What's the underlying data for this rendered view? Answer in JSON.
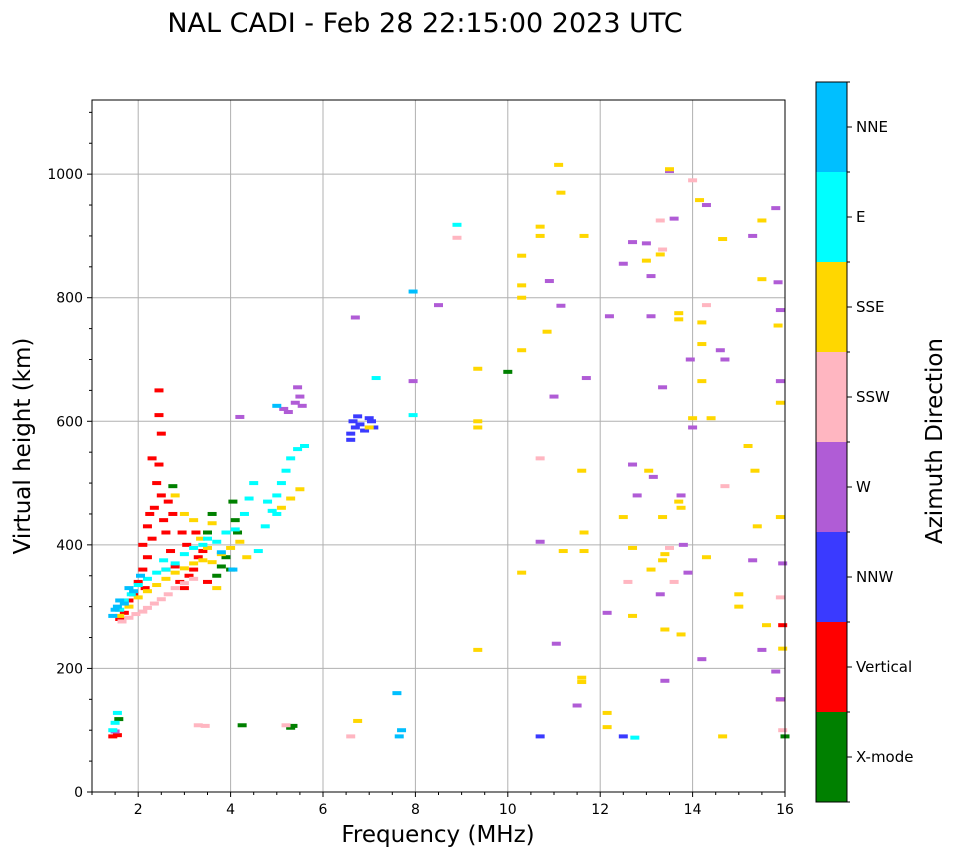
{
  "chart_data": {
    "type": "scatter",
    "title": "NAL CADI - Feb 28 22:15:00 2023 UTC",
    "xlabel": "Frequency (MHz)",
    "ylabel": "Virtual height (km)",
    "xlim": [
      1.0,
      16.0
    ],
    "ylim": [
      0,
      1120
    ],
    "xticks": [
      2,
      4,
      6,
      8,
      10,
      12,
      14,
      16
    ],
    "yticks": [
      0,
      200,
      400,
      600,
      800,
      1000
    ],
    "grid": true,
    "colorbar": {
      "label": "Azimuth Direction",
      "categories": [
        "X-mode",
        "Vertical",
        "NNW",
        "W",
        "SSW",
        "SSE",
        "E",
        "NNE"
      ],
      "colors": [
        "#008000",
        "#ff0000",
        "#3a3aff",
        "#b05cd6",
        "#ffb6c1",
        "#ffd700",
        "#00ffff",
        "#00bfff"
      ]
    },
    "series": [
      {
        "name": "X-mode",
        "points": [
          [
            3.7,
            350
          ],
          [
            3.8,
            365
          ],
          [
            3.9,
            380
          ],
          [
            4.0,
            360
          ],
          [
            4.05,
            470
          ],
          [
            4.1,
            440
          ],
          [
            4.15,
            420
          ],
          [
            3.6,
            450
          ],
          [
            3.5,
            420
          ],
          [
            2.75,
            495
          ],
          [
            1.58,
            118
          ],
          [
            4.25,
            108
          ],
          [
            5.3,
            104
          ],
          [
            5.35,
            107
          ],
          [
            10.0,
            680
          ],
          [
            16.0,
            90
          ]
        ]
      },
      {
        "name": "Vertical",
        "points": [
          [
            1.45,
            90
          ],
          [
            1.55,
            92
          ],
          [
            1.6,
            280
          ],
          [
            1.7,
            290
          ],
          [
            1.8,
            310
          ],
          [
            1.9,
            320
          ],
          [
            2.0,
            340
          ],
          [
            2.1,
            360
          ],
          [
            2.2,
            380
          ],
          [
            2.3,
            410
          ],
          [
            2.35,
            460
          ],
          [
            2.4,
            500
          ],
          [
            2.45,
            530
          ],
          [
            2.3,
            540
          ],
          [
            2.5,
            580
          ],
          [
            2.45,
            610
          ],
          [
            2.45,
            650
          ],
          [
            2.5,
            480
          ],
          [
            2.6,
            420
          ],
          [
            2.7,
            390
          ],
          [
            2.8,
            365
          ],
          [
            2.9,
            340
          ],
          [
            3.0,
            330
          ],
          [
            3.1,
            350
          ],
          [
            3.2,
            360
          ],
          [
            3.3,
            380
          ],
          [
            3.4,
            390
          ],
          [
            2.2,
            430
          ],
          [
            2.25,
            450
          ],
          [
            2.55,
            440
          ],
          [
            2.65,
            470
          ],
          [
            2.75,
            450
          ],
          [
            2.95,
            420
          ],
          [
            3.05,
            400
          ],
          [
            3.25,
            420
          ],
          [
            2.1,
            400
          ],
          [
            2.15,
            330
          ],
          [
            2.6,
            360
          ],
          [
            3.5,
            340
          ],
          [
            15.9,
            150
          ],
          [
            15.95,
            270
          ]
        ]
      },
      {
        "name": "NNW",
        "points": [
          [
            6.6,
            580
          ],
          [
            6.65,
            600
          ],
          [
            6.7,
            590
          ],
          [
            6.75,
            608
          ],
          [
            6.8,
            595
          ],
          [
            6.9,
            585
          ],
          [
            7.0,
            605
          ],
          [
            7.05,
            600
          ],
          [
            7.1,
            590
          ],
          [
            6.6,
            570
          ],
          [
            10.7,
            90
          ],
          [
            12.5,
            90
          ]
        ]
      },
      {
        "name": "W",
        "points": [
          [
            1.5,
            98
          ],
          [
            5.15,
            620
          ],
          [
            5.25,
            615
          ],
          [
            5.4,
            630
          ],
          [
            5.5,
            640
          ],
          [
            5.45,
            655
          ],
          [
            5.55,
            625
          ],
          [
            4.2,
            607
          ],
          [
            6.7,
            768
          ],
          [
            7.95,
            665
          ],
          [
            8.5,
            788
          ],
          [
            10.7,
            405
          ],
          [
            10.9,
            827
          ],
          [
            11.0,
            640
          ],
          [
            11.05,
            240
          ],
          [
            11.15,
            787
          ],
          [
            11.5,
            140
          ],
          [
            11.7,
            670
          ],
          [
            12.2,
            770
          ],
          [
            12.15,
            290
          ],
          [
            12.5,
            855
          ],
          [
            12.7,
            890
          ],
          [
            12.7,
            530
          ],
          [
            12.8,
            480
          ],
          [
            13.0,
            888
          ],
          [
            13.1,
            835
          ],
          [
            13.1,
            770
          ],
          [
            13.15,
            510
          ],
          [
            13.3,
            320
          ],
          [
            13.35,
            655
          ],
          [
            13.4,
            180
          ],
          [
            13.5,
            1005
          ],
          [
            13.6,
            928
          ],
          [
            13.75,
            480
          ],
          [
            13.8,
            400
          ],
          [
            13.9,
            355
          ],
          [
            13.95,
            700
          ],
          [
            14.0,
            590
          ],
          [
            14.2,
            215
          ],
          [
            14.3,
            950
          ],
          [
            14.6,
            715
          ],
          [
            14.7,
            700
          ],
          [
            15.3,
            900
          ],
          [
            15.3,
            375
          ],
          [
            15.5,
            230
          ],
          [
            15.8,
            945
          ],
          [
            15.85,
            825
          ],
          [
            15.9,
            780
          ],
          [
            15.9,
            665
          ],
          [
            15.95,
            370
          ],
          [
            15.8,
            195
          ],
          [
            15.9,
            150
          ]
        ]
      },
      {
        "name": "SSW",
        "points": [
          [
            1.65,
            276
          ],
          [
            1.8,
            282
          ],
          [
            1.95,
            288
          ],
          [
            2.1,
            292
          ],
          [
            2.2,
            298
          ],
          [
            2.35,
            305
          ],
          [
            2.5,
            312
          ],
          [
            2.65,
            320
          ],
          [
            2.8,
            330
          ],
          [
            3.0,
            338
          ],
          [
            3.2,
            345
          ],
          [
            3.3,
            108
          ],
          [
            3.45,
            107
          ],
          [
            5.2,
            108
          ],
          [
            6.6,
            90
          ],
          [
            8.9,
            897
          ],
          [
            10.7,
            540
          ],
          [
            12.6,
            340
          ],
          [
            13.3,
            925
          ],
          [
            13.35,
            878
          ],
          [
            13.5,
            395
          ],
          [
            13.6,
            340
          ],
          [
            14.0,
            990
          ],
          [
            14.3,
            788
          ],
          [
            14.7,
            495
          ],
          [
            15.9,
            315
          ],
          [
            15.95,
            100
          ]
        ]
      },
      {
        "name": "SSE",
        "points": [
          [
            1.6,
            285
          ],
          [
            1.8,
            300
          ],
          [
            2.0,
            315
          ],
          [
            2.2,
            325
          ],
          [
            2.4,
            335
          ],
          [
            2.6,
            345
          ],
          [
            2.8,
            355
          ],
          [
            3.0,
            362
          ],
          [
            3.2,
            370
          ],
          [
            3.4,
            375
          ],
          [
            3.6,
            372
          ],
          [
            3.8,
            385
          ],
          [
            4.0,
            395
          ],
          [
            4.2,
            405
          ],
          [
            4.35,
            380
          ],
          [
            2.8,
            480
          ],
          [
            3.0,
            450
          ],
          [
            3.2,
            440
          ],
          [
            3.35,
            410
          ],
          [
            3.5,
            395
          ],
          [
            3.6,
            435
          ],
          [
            3.7,
            330
          ],
          [
            5.1,
            460
          ],
          [
            5.3,
            475
          ],
          [
            5.5,
            490
          ],
          [
            6.75,
            115
          ],
          [
            7.0,
            590
          ],
          [
            9.35,
            685
          ],
          [
            9.35,
            600
          ],
          [
            9.35,
            590
          ],
          [
            9.35,
            230
          ],
          [
            10.3,
            868
          ],
          [
            10.3,
            820
          ],
          [
            10.3,
            800
          ],
          [
            10.3,
            715
          ],
          [
            10.3,
            355
          ],
          [
            10.7,
            915
          ],
          [
            10.7,
            900
          ],
          [
            10.85,
            745
          ],
          [
            11.1,
            1015
          ],
          [
            11.15,
            970
          ],
          [
            11.2,
            390
          ],
          [
            11.65,
            900
          ],
          [
            11.6,
            520
          ],
          [
            11.65,
            420
          ],
          [
            11.65,
            390
          ],
          [
            11.6,
            185
          ],
          [
            11.6,
            178
          ],
          [
            12.15,
            128
          ],
          [
            12.15,
            105
          ],
          [
            12.5,
            445
          ],
          [
            12.7,
            395
          ],
          [
            12.7,
            285
          ],
          [
            13.0,
            860
          ],
          [
            13.05,
            520
          ],
          [
            13.1,
            360
          ],
          [
            13.3,
            870
          ],
          [
            13.35,
            445
          ],
          [
            13.4,
            385
          ],
          [
            13.35,
            375
          ],
          [
            13.4,
            263
          ],
          [
            13.5,
            1008
          ],
          [
            13.7,
            775
          ],
          [
            13.7,
            765
          ],
          [
            13.7,
            470
          ],
          [
            13.75,
            460
          ],
          [
            13.75,
            255
          ],
          [
            14.0,
            605
          ],
          [
            14.15,
            958
          ],
          [
            14.2,
            760
          ],
          [
            14.2,
            725
          ],
          [
            14.2,
            665
          ],
          [
            14.3,
            380
          ],
          [
            14.4,
            605
          ],
          [
            14.65,
            895
          ],
          [
            14.65,
            90
          ],
          [
            15.0,
            300
          ],
          [
            15.0,
            320
          ],
          [
            15.2,
            560
          ],
          [
            15.35,
            520
          ],
          [
            15.4,
            430
          ],
          [
            15.5,
            925
          ],
          [
            15.5,
            830
          ],
          [
            15.6,
            270
          ],
          [
            15.85,
            755
          ],
          [
            15.9,
            630
          ],
          [
            15.9,
            445
          ],
          [
            15.95,
            232
          ]
        ]
      },
      {
        "name": "E",
        "points": [
          [
            1.45,
            100
          ],
          [
            1.5,
            112
          ],
          [
            1.55,
            128
          ],
          [
            1.6,
            295
          ],
          [
            1.7,
            310
          ],
          [
            1.85,
            320
          ],
          [
            2.0,
            335
          ],
          [
            2.2,
            345
          ],
          [
            2.4,
            355
          ],
          [
            2.6,
            360
          ],
          [
            2.8,
            370
          ],
          [
            3.0,
            385
          ],
          [
            3.2,
            395
          ],
          [
            3.4,
            400
          ],
          [
            3.5,
            410
          ],
          [
            3.7,
            405
          ],
          [
            3.9,
            420
          ],
          [
            4.1,
            425
          ],
          [
            4.3,
            450
          ],
          [
            4.4,
            475
          ],
          [
            4.5,
            500
          ],
          [
            4.6,
            390
          ],
          [
            4.75,
            430
          ],
          [
            4.9,
            455
          ],
          [
            5.0,
            480
          ],
          [
            5.1,
            500
          ],
          [
            5.2,
            520
          ],
          [
            5.3,
            540
          ],
          [
            5.45,
            555
          ],
          [
            5.0,
            450
          ],
          [
            4.8,
            470
          ],
          [
            5.6,
            560
          ],
          [
            2.55,
            375
          ],
          [
            7.15,
            670
          ],
          [
            7.95,
            610
          ],
          [
            8.9,
            918
          ],
          [
            12.75,
            88
          ]
        ]
      },
      {
        "name": "NNE",
        "points": [
          [
            1.45,
            285
          ],
          [
            1.5,
            295
          ],
          [
            1.55,
            300
          ],
          [
            1.6,
            310
          ],
          [
            1.7,
            305
          ],
          [
            1.8,
            330
          ],
          [
            1.9,
            325
          ],
          [
            2.05,
            350
          ],
          [
            3.8,
            388
          ],
          [
            4.05,
            360
          ],
          [
            5.0,
            625
          ],
          [
            7.6,
            160
          ],
          [
            7.7,
            100
          ],
          [
            7.65,
            90
          ],
          [
            7.95,
            810
          ]
        ]
      }
    ]
  }
}
